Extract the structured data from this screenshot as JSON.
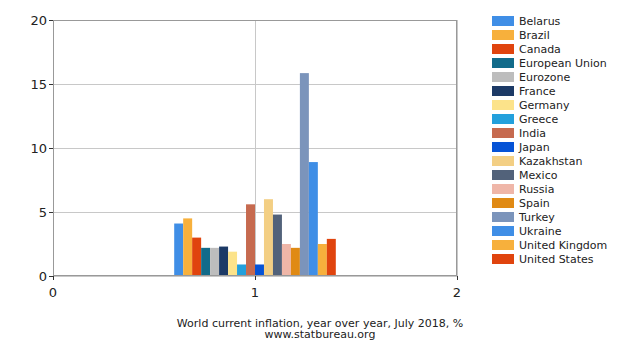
{
  "chart_data": {
    "type": "bar",
    "title": "World current inflation, year over year, July 2018, %",
    "subtitle": "www.statbureau.org",
    "x": [
      1
    ],
    "xlim": [
      0,
      2
    ],
    "xticks": [
      0,
      1,
      2
    ],
    "ylim": [
      0,
      20
    ],
    "yticks": [
      0,
      5,
      10,
      15,
      20
    ],
    "grid": true,
    "legend": "right",
    "series": [
      {
        "name": "Belarus",
        "color": "#3f8ee6",
        "values": [
          4.1
        ]
      },
      {
        "name": "Brazil",
        "color": "#f7b03c",
        "values": [
          4.5
        ]
      },
      {
        "name": "Canada",
        "color": "#e0440e",
        "values": [
          3.0
        ]
      },
      {
        "name": "European Union",
        "color": "#126b8a",
        "values": [
          2.2
        ]
      },
      {
        "name": "Eurozone",
        "color": "#bdbdbd",
        "values": [
          2.2
        ]
      },
      {
        "name": "France",
        "color": "#1c3a66",
        "values": [
          2.3
        ]
      },
      {
        "name": "Germany",
        "color": "#fce38a",
        "values": [
          1.9
        ]
      },
      {
        "name": "Greece",
        "color": "#23a0dc",
        "values": [
          0.9
        ]
      },
      {
        "name": "India",
        "color": "#c66a4f",
        "values": [
          5.6
        ]
      },
      {
        "name": "Japan",
        "color": "#0653d6",
        "values": [
          0.9
        ]
      },
      {
        "name": "Kazakhstan",
        "color": "#f3cf84",
        "values": [
          6.0
        ]
      },
      {
        "name": "Mexico",
        "color": "#52627a",
        "values": [
          4.8
        ]
      },
      {
        "name": "Russia",
        "color": "#efb6a8",
        "values": [
          2.5
        ]
      },
      {
        "name": "Spain",
        "color": "#e08a14",
        "values": [
          2.2
        ]
      },
      {
        "name": "Turkey",
        "color": "#7b94bb",
        "values": [
          15.85
        ]
      },
      {
        "name": "Ukraine",
        "color": "#3f8ee6",
        "values": [
          8.9
        ]
      },
      {
        "name": "United Kingdom",
        "color": "#f7b03c",
        "values": [
          2.5
        ]
      },
      {
        "name": "United States",
        "color": "#e0440e",
        "values": [
          2.9
        ]
      }
    ]
  }
}
